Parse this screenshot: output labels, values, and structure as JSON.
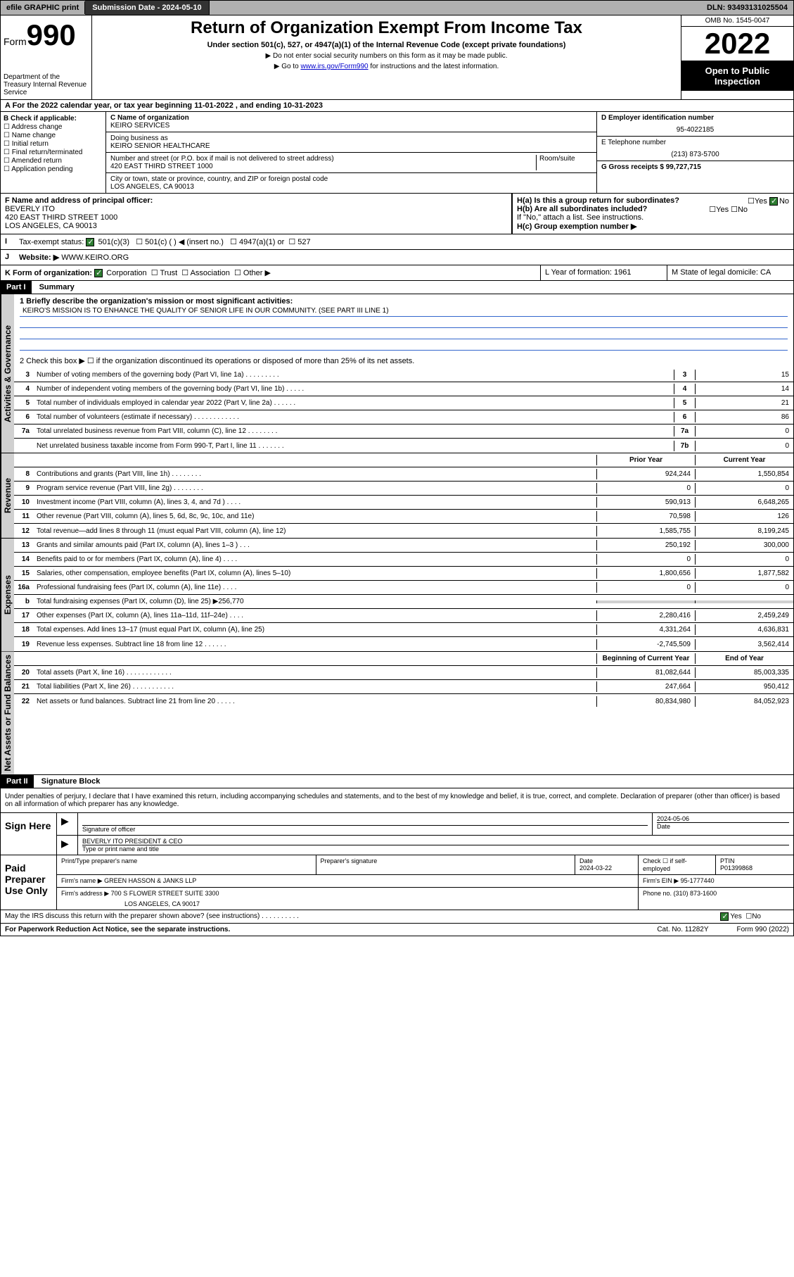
{
  "header_bar": {
    "efile": "efile GRAPHIC print",
    "submission": "Submission Date - 2024-05-10",
    "dln": "DLN: 93493131025504"
  },
  "form_top": {
    "form_label": "Form",
    "form_num": "990",
    "dept": "Department of the Treasury Internal Revenue Service",
    "title": "Return of Organization Exempt From Income Tax",
    "subtitle": "Under section 501(c), 527, or 4947(a)(1) of the Internal Revenue Code (except private foundations)",
    "arrow1": "▶ Do not enter social security numbers on this form as it may be made public.",
    "arrow2_pre": "▶ Go to ",
    "arrow2_link": "www.irs.gov/Form990",
    "arrow2_post": " for instructions and the latest information.",
    "omb": "OMB No. 1545-0047",
    "year": "2022",
    "open": "Open to Public Inspection"
  },
  "section_a": "A For the 2022 calendar year, or tax year beginning 11-01-2022    , and ending 10-31-2023",
  "col_b": {
    "label": "B Check if applicable:",
    "items": [
      "Address change",
      "Name change",
      "Initial return",
      "Final return/terminated",
      "Amended return",
      "Application pending"
    ]
  },
  "col_c": {
    "name_label": "C Name of organization",
    "name": "KEIRO SERVICES",
    "dba_label": "Doing business as",
    "dba": "KEIRO SENIOR HEALTHCARE",
    "street_label": "Number and street (or P.O. box if mail is not delivered to street address)",
    "street": "420 EAST THIRD STREET 1000",
    "room_label": "Room/suite",
    "city_label": "City or town, state or province, country, and ZIP or foreign postal code",
    "city": "LOS ANGELES, CA  90013"
  },
  "col_d": {
    "ein_label": "D Employer identification number",
    "ein": "95-4022185",
    "phone_label": "E Telephone number",
    "phone": "(213) 873-5700",
    "gross_label": "G Gross receipts $ 99,727,715"
  },
  "row_f": {
    "label": "F Name and address of principal officer:",
    "name": "BEVERLY ITO",
    "addr1": "420 EAST THIRD STREET 1000",
    "addr2": "LOS ANGELES, CA  90013"
  },
  "row_h": {
    "ha": "H(a)  Is this a group return for subordinates?",
    "hb": "H(b)  Are all subordinates included?",
    "hb_note": "If \"No,\" attach a list. See instructions.",
    "hc": "H(c)  Group exemption number ▶"
  },
  "row_i": {
    "label": "Tax-exempt status:",
    "opt1": "501(c)(3)",
    "opt2": "501(c) (   ) ◀ (insert no.)",
    "opt3": "4947(a)(1) or",
    "opt4": "527"
  },
  "row_j": {
    "label": "Website: ▶",
    "value": "WWW.KEIRO.ORG"
  },
  "row_k": {
    "label": "K Form of organization:",
    "opts": [
      "Corporation",
      "Trust",
      "Association",
      "Other ▶"
    ],
    "year_label": "L Year of formation: 1961",
    "state_label": "M State of legal domicile: CA"
  },
  "part1": {
    "header": "Part I",
    "title": "Summary"
  },
  "summary": {
    "q1_label": "1  Briefly describe the organization's mission or most significant activities:",
    "q1_text": "KEIRO'S MISSION IS TO ENHANCE THE QUALITY OF SENIOR LIFE IN OUR COMMUNITY. (SEE PART III LINE 1)",
    "q2": "2   Check this box ▶ ☐  if the organization discontinued its operations or disposed of more than 25% of its net assets."
  },
  "vert_labels": {
    "gov": "Activities & Governance",
    "rev": "Revenue",
    "exp": "Expenses",
    "net": "Net Assets or Fund Balances"
  },
  "gov_rows": [
    {
      "n": "3",
      "t": "Number of voting members of the governing body (Part VI, line 1a)  .    .    .    .    .    .    .    .    .",
      "box": "3",
      "v": "15"
    },
    {
      "n": "4",
      "t": "Number of independent voting members of the governing body (Part VI, line 1b)  .    .    .    .    .",
      "box": "4",
      "v": "14"
    },
    {
      "n": "5",
      "t": "Total number of individuals employed in calendar year 2022 (Part V, line 2a)  .    .    .    .    .    .",
      "box": "5",
      "v": "21"
    },
    {
      "n": "6",
      "t": "Total number of volunteers (estimate if necessary)  .    .    .    .    .    .    .    .    .    .    .    .",
      "box": "6",
      "v": "86"
    },
    {
      "n": "7a",
      "t": "Total unrelated business revenue from Part VIII, column (C), line 12  .    .    .    .    .    .    .    .",
      "box": "7a",
      "v": "0"
    },
    {
      "n": "",
      "t": "Net unrelated business taxable income from Form 990-T, Part I, line 11  .    .    .    .    .    .    .",
      "box": "7b",
      "v": "0"
    }
  ],
  "col_headers": {
    "prior": "Prior Year",
    "current": "Current Year"
  },
  "rev_rows": [
    {
      "n": "8",
      "t": "Contributions and grants (Part VIII, line 1h)  .    .    .    .    .    .    .    .",
      "p": "924,244",
      "c": "1,550,854"
    },
    {
      "n": "9",
      "t": "Program service revenue (Part VIII, line 2g)  .    .    .    .    .    .    .    .",
      "p": "0",
      "c": "0"
    },
    {
      "n": "10",
      "t": "Investment income (Part VIII, column (A), lines 3, 4, and 7d )  .    .    .    .",
      "p": "590,913",
      "c": "6,648,265"
    },
    {
      "n": "11",
      "t": "Other revenue (Part VIII, column (A), lines 5, 6d, 8c, 9c, 10c, and 11e)",
      "p": "70,598",
      "c": "126"
    },
    {
      "n": "12",
      "t": "Total revenue—add lines 8 through 11 (must equal Part VIII, column (A), line 12)",
      "p": "1,585,755",
      "c": "8,199,245"
    }
  ],
  "exp_rows": [
    {
      "n": "13",
      "t": "Grants and similar amounts paid (Part IX, column (A), lines 1–3 )  .    .    .",
      "p": "250,192",
      "c": "300,000"
    },
    {
      "n": "14",
      "t": "Benefits paid to or for members (Part IX, column (A), line 4)  .    .    .    .",
      "p": "0",
      "c": "0"
    },
    {
      "n": "15",
      "t": "Salaries, other compensation, employee benefits (Part IX, column (A), lines 5–10)",
      "p": "1,800,656",
      "c": "1,877,582"
    },
    {
      "n": "16a",
      "t": "Professional fundraising fees (Part IX, column (A), line 11e)  .    .    .    .",
      "p": "0",
      "c": "0"
    },
    {
      "n": "b",
      "t": "Total fundraising expenses (Part IX, column (D), line 25) ▶256,770",
      "p": "",
      "c": "",
      "gray": true
    },
    {
      "n": "17",
      "t": "Other expenses (Part IX, column (A), lines 11a–11d, 11f–24e)  .    .    .    .",
      "p": "2,280,416",
      "c": "2,459,249"
    },
    {
      "n": "18",
      "t": "Total expenses. Add lines 13–17 (must equal Part IX, column (A), line 25)",
      "p": "4,331,264",
      "c": "4,636,831"
    },
    {
      "n": "19",
      "t": "Revenue less expenses. Subtract line 18 from line 12  .    .    .    .    .    .",
      "p": "-2,745,509",
      "c": "3,562,414"
    }
  ],
  "net_headers": {
    "begin": "Beginning of Current Year",
    "end": "End of Year"
  },
  "net_rows": [
    {
      "n": "20",
      "t": "Total assets (Part X, line 16)  .    .    .    .    .    .    .    .    .    .    .    .",
      "p": "81,082,644",
      "c": "85,003,335"
    },
    {
      "n": "21",
      "t": "Total liabilities (Part X, line 26)  .    .    .    .    .    .    .    .    .    .    .",
      "p": "247,664",
      "c": "950,412"
    },
    {
      "n": "22",
      "t": "Net assets or fund balances. Subtract line 21 from line 20  .    .    .    .    .",
      "p": "80,834,980",
      "c": "84,052,923"
    }
  ],
  "part2": {
    "header": "Part II",
    "title": "Signature Block"
  },
  "sig_decl": "Under penalties of perjury, I declare that I have examined this return, including accompanying schedules and statements, and to the best of my knowledge and belief, it is true, correct, and complete. Declaration of preparer (other than officer) is based on all information of which preparer has any knowledge.",
  "sign_here": {
    "label": "Sign Here",
    "sig_label": "Signature of officer",
    "date": "2024-05-06",
    "date_label": "Date",
    "name": "BEVERLY ITO PRESIDENT & CEO",
    "name_label": "Type or print name and title"
  },
  "paid_prep": {
    "label": "Paid Preparer Use Only",
    "h1": "Print/Type preparer's name",
    "h2": "Preparer's signature",
    "h3": "Date",
    "h3v": "2024-03-22",
    "h4": "Check ☐ if self-employed",
    "h5": "PTIN",
    "h5v": "P01399868",
    "firm_label": "Firm's name    ▶",
    "firm": "GREEN HASSON & JANKS LLP",
    "ein_label": "Firm's EIN ▶ 95-1777440",
    "addr_label": "Firm's address ▶",
    "addr1": "700 S FLOWER STREET SUITE 3300",
    "addr2": "LOS ANGELES, CA  90017",
    "phone": "Phone no. (310) 873-1600"
  },
  "footer": {
    "discuss": "May the IRS discuss this return with the preparer shown above? (see instructions)  .    .    .    .    .    .    .    .    .    .",
    "paperwork": "For Paperwork Reduction Act Notice, see the separate instructions.",
    "cat": "Cat. No. 11282Y",
    "form": "Form 990 (2022)"
  }
}
